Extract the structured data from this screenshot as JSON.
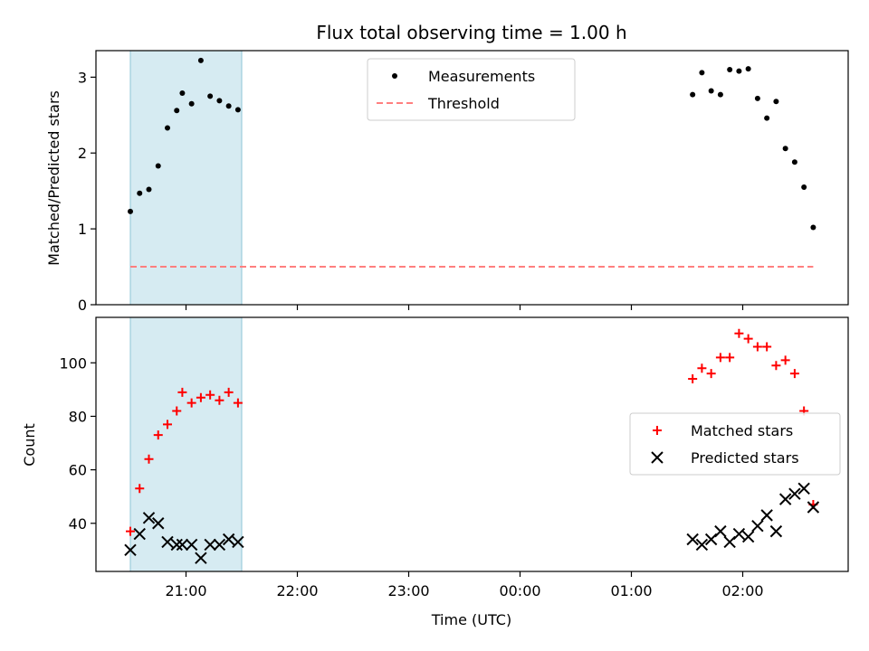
{
  "chart_data": [
    {
      "type": "scatter",
      "title": "Flux total observing time = 1.00 h",
      "xlabel": "",
      "ylabel": "Matched/Predicted stars",
      "ylim": [
        0,
        3.35
      ],
      "yticks": [
        0,
        1,
        2,
        3
      ],
      "ytick_labels": [
        "0",
        "1",
        "2",
        "3"
      ],
      "shaded_region": {
        "start": "20:30",
        "end": "21:30",
        "color": "#add8e6"
      },
      "legend_position": "top-center",
      "series": [
        {
          "name": "Measurements",
          "marker": "dot",
          "color": "#000000",
          "points": [
            {
              "x": "20:30",
              "y": 1.23
            },
            {
              "x": "20:35",
              "y": 1.47
            },
            {
              "x": "20:40",
              "y": 1.52
            },
            {
              "x": "20:45",
              "y": 1.83
            },
            {
              "x": "20:50",
              "y": 2.33
            },
            {
              "x": "20:55",
              "y": 2.56
            },
            {
              "x": "20:58",
              "y": 2.79
            },
            {
              "x": "21:03",
              "y": 2.65
            },
            {
              "x": "21:08",
              "y": 3.22
            },
            {
              "x": "21:13",
              "y": 2.75
            },
            {
              "x": "21:18",
              "y": 2.69
            },
            {
              "x": "21:23",
              "y": 2.62
            },
            {
              "x": "21:28",
              "y": 2.57
            },
            {
              "x": "01:33",
              "y": 2.77
            },
            {
              "x": "01:38",
              "y": 3.06
            },
            {
              "x": "01:43",
              "y": 2.82
            },
            {
              "x": "01:48",
              "y": 2.77
            },
            {
              "x": "01:53",
              "y": 3.1
            },
            {
              "x": "01:58",
              "y": 3.08
            },
            {
              "x": "02:03",
              "y": 3.11
            },
            {
              "x": "02:08",
              "y": 2.72
            },
            {
              "x": "02:13",
              "y": 2.46
            },
            {
              "x": "02:18",
              "y": 2.68
            },
            {
              "x": "02:23",
              "y": 2.06
            },
            {
              "x": "02:28",
              "y": 1.88
            },
            {
              "x": "02:33",
              "y": 1.55
            },
            {
              "x": "02:38",
              "y": 1.02
            }
          ]
        },
        {
          "name": "Threshold",
          "marker": "dashed-line",
          "color": "#ff7f7f",
          "points": [
            {
              "x": "20:30",
              "y": 0.5
            },
            {
              "x": "02:38",
              "y": 0.5
            }
          ]
        }
      ]
    },
    {
      "type": "scatter",
      "title": "",
      "xlabel": "Time (UTC)",
      "ylabel": "Count",
      "ylim": [
        22,
        117
      ],
      "yticks": [
        40,
        60,
        80,
        100
      ],
      "ytick_labels": [
        "40",
        "60",
        "80",
        "100"
      ],
      "xticks": [
        "21:00",
        "22:00",
        "23:00",
        "00:00",
        "01:00",
        "02:00"
      ],
      "shaded_region": {
        "start": "20:30",
        "end": "21:30",
        "color": "#add8e6"
      },
      "legend_position": "center-right",
      "series": [
        {
          "name": "Matched stars",
          "marker": "plus",
          "color": "#ff0000",
          "points": [
            {
              "x": "20:30",
              "y": 37
            },
            {
              "x": "20:35",
              "y": 53
            },
            {
              "x": "20:40",
              "y": 64
            },
            {
              "x": "20:45",
              "y": 73
            },
            {
              "x": "20:50",
              "y": 77
            },
            {
              "x": "20:55",
              "y": 82
            },
            {
              "x": "20:58",
              "y": 89
            },
            {
              "x": "21:03",
              "y": 85
            },
            {
              "x": "21:08",
              "y": 87
            },
            {
              "x": "21:13",
              "y": 88
            },
            {
              "x": "21:18",
              "y": 86
            },
            {
              "x": "21:23",
              "y": 89
            },
            {
              "x": "21:28",
              "y": 85
            },
            {
              "x": "01:33",
              "y": 94
            },
            {
              "x": "01:38",
              "y": 98
            },
            {
              "x": "01:43",
              "y": 96
            },
            {
              "x": "01:48",
              "y": 102
            },
            {
              "x": "01:53",
              "y": 102
            },
            {
              "x": "01:58",
              "y": 111
            },
            {
              "x": "02:03",
              "y": 109
            },
            {
              "x": "02:08",
              "y": 106
            },
            {
              "x": "02:13",
              "y": 106
            },
            {
              "x": "02:18",
              "y": 99
            },
            {
              "x": "02:23",
              "y": 101
            },
            {
              "x": "02:28",
              "y": 96
            },
            {
              "x": "02:33",
              "y": 82
            },
            {
              "x": "02:38",
              "y": 47
            }
          ]
        },
        {
          "name": "Predicted stars",
          "marker": "x",
          "color": "#000000",
          "points": [
            {
              "x": "20:30",
              "y": 30
            },
            {
              "x": "20:35",
              "y": 36
            },
            {
              "x": "20:40",
              "y": 42
            },
            {
              "x": "20:45",
              "y": 40
            },
            {
              "x": "20:50",
              "y": 33
            },
            {
              "x": "20:55",
              "y": 32
            },
            {
              "x": "20:58",
              "y": 32
            },
            {
              "x": "21:03",
              "y": 32
            },
            {
              "x": "21:08",
              "y": 27
            },
            {
              "x": "21:13",
              "y": 32
            },
            {
              "x": "21:18",
              "y": 32
            },
            {
              "x": "21:23",
              "y": 34
            },
            {
              "x": "21:28",
              "y": 33
            },
            {
              "x": "01:33",
              "y": 34
            },
            {
              "x": "01:38",
              "y": 32
            },
            {
              "x": "01:43",
              "y": 34
            },
            {
              "x": "01:48",
              "y": 37
            },
            {
              "x": "01:53",
              "y": 33
            },
            {
              "x": "01:58",
              "y": 36
            },
            {
              "x": "02:03",
              "y": 35
            },
            {
              "x": "02:08",
              "y": 39
            },
            {
              "x": "02:13",
              "y": 43
            },
            {
              "x": "02:18",
              "y": 37
            },
            {
              "x": "02:23",
              "y": 49
            },
            {
              "x": "02:28",
              "y": 51
            },
            {
              "x": "02:33",
              "y": 53
            },
            {
              "x": "02:38",
              "y": 46
            }
          ]
        }
      ]
    }
  ]
}
